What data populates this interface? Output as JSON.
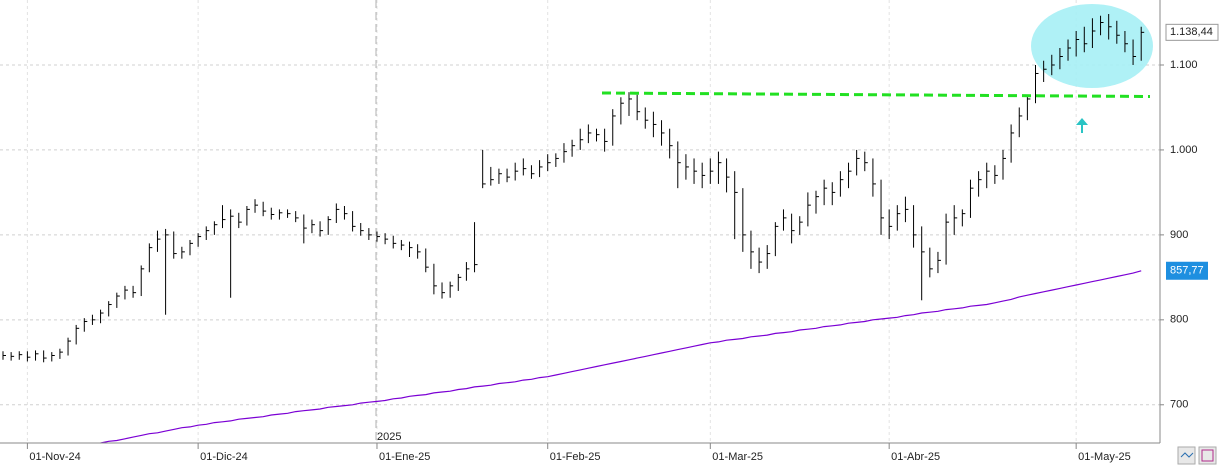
{
  "chart_data": {
    "type": "ohlc",
    "categories": [
      null,
      null,
      null,
      "01-Nov-24",
      null,
      null,
      null,
      null,
      null,
      null,
      null,
      null,
      null,
      null,
      null,
      null,
      null,
      null,
      null,
      null,
      null,
      null,
      null,
      null,
      "01-Dic-24",
      null,
      null,
      null,
      null,
      null,
      null,
      null,
      null,
      null,
      null,
      null,
      null,
      null,
      null,
      null,
      null,
      null,
      null,
      null,
      null,
      null,
      "01-Ene-25",
      null,
      null,
      null,
      null,
      null,
      null,
      null,
      null,
      null,
      null,
      null,
      null,
      null,
      null,
      null,
      null,
      null,
      null,
      null,
      null,
      "01-Feb-25",
      null,
      null,
      null,
      null,
      null,
      null,
      null,
      null,
      null,
      null,
      null,
      null,
      null,
      null,
      null,
      null,
      null,
      null,
      null,
      "01-Mar-25",
      null,
      null,
      null,
      null,
      null,
      null,
      null,
      null,
      null,
      null,
      null,
      null,
      null,
      null,
      null,
      null,
      null,
      null,
      null,
      null,
      null,
      "01-Abr-25",
      null,
      null,
      null,
      null,
      null,
      null,
      null,
      null,
      null,
      null,
      null,
      null,
      null,
      null,
      null,
      null,
      null,
      null,
      null,
      null,
      null,
      null,
      "01-May-25",
      null,
      null,
      null,
      null,
      null,
      null,
      null,
      null
    ],
    "high": [
      763,
      762,
      763,
      763,
      764,
      764,
      762,
      766,
      779,
      794,
      802,
      806,
      812,
      822,
      832,
      840,
      840,
      864,
      890,
      905,
      907,
      904,
      886,
      894,
      902,
      910,
      916,
      935,
      930,
      926,
      934,
      942,
      939,
      932,
      930,
      930,
      928,
      924,
      918,
      916,
      922,
      937,
      934,
      928,
      914,
      908,
      904,
      902,
      899,
      894,
      892,
      889,
      884,
      866,
      844,
      845,
      854,
      868,
      915,
      1000,
      980,
      978,
      978,
      985,
      990,
      982,
      988,
      995,
      996,
      1008,
      1012,
      1025,
      1030,
      1025,
      1025,
      1048,
      1062,
      1068,
      1065,
      1050,
      1045,
      1035,
      1025,
      1010,
      995,
      990,
      985,
      990,
      998,
      990,
      975,
      955,
      905,
      885,
      888,
      915,
      930,
      925,
      922,
      950,
      952,
      965,
      962,
      975,
      985,
      1000,
      998,
      990,
      965,
      930,
      935,
      945,
      935,
      910,
      885,
      880,
      925,
      935,
      930,
      965,
      975,
      985,
      982,
      1000,
      1030,
      1050,
      1065,
      1100,
      1105,
      1112,
      1120,
      1130,
      1140,
      1145,
      1155,
      1158,
      1160,
      1152,
      1140,
      1130,
      1145
    ],
    "low": [
      753,
      752,
      753,
      751,
      752,
      750,
      751,
      754,
      758,
      771,
      786,
      794,
      796,
      804,
      814,
      824,
      826,
      828,
      856,
      880,
      806,
      872,
      872,
      876,
      886,
      894,
      900,
      908,
      826,
      908,
      911,
      926,
      922,
      918,
      918,
      920,
      915,
      890,
      902,
      898,
      900,
      914,
      918,
      904,
      899,
      894,
      892,
      889,
      884,
      882,
      874,
      872,
      856,
      830,
      825,
      826,
      834,
      846,
      856,
      955,
      958,
      960,
      962,
      964,
      970,
      966,
      968,
      975,
      980,
      985,
      992,
      1000,
      1008,
      1010,
      998,
      1005,
      1030,
      1040,
      1035,
      1025,
      1015,
      1005,
      990,
      955,
      965,
      960,
      955,
      960,
      960,
      950,
      895,
      880,
      860,
      855,
      860,
      875,
      905,
      890,
      900,
      910,
      925,
      935,
      935,
      945,
      955,
      970,
      975,
      945,
      900,
      895,
      905,
      915,
      885,
      823,
      850,
      855,
      865,
      900,
      910,
      920,
      945,
      955,
      960,
      965,
      985,
      1015,
      1035,
      1055,
      1080,
      1088,
      1095,
      1105,
      1110,
      1115,
      1120,
      1135,
      1130,
      1125,
      1115,
      1100,
      1105
    ],
    "close": [
      758,
      757,
      759,
      756,
      760,
      755,
      758,
      762,
      775,
      790,
      798,
      800,
      808,
      818,
      828,
      835,
      832,
      860,
      885,
      895,
      900,
      878,
      880,
      890,
      898,
      905,
      912,
      918,
      922,
      915,
      930,
      935,
      928,
      924,
      926,
      925,
      920,
      908,
      912,
      905,
      918,
      930,
      925,
      910,
      905,
      900,
      898,
      895,
      890,
      888,
      885,
      880,
      862,
      840,
      832,
      840,
      850,
      860,
      865,
      960,
      965,
      972,
      968,
      975,
      978,
      972,
      980,
      985,
      990,
      998,
      1005,
      1012,
      1020,
      1018,
      1010,
      1040,
      1055,
      1060,
      1045,
      1035,
      1030,
      1020,
      1005,
      985,
      980,
      975,
      970,
      975,
      985,
      968,
      950,
      900,
      880,
      868,
      878,
      910,
      920,
      905,
      915,
      935,
      945,
      955,
      950,
      965,
      975,
      990,
      985,
      960,
      920,
      910,
      925,
      930,
      900,
      880,
      860,
      870,
      915,
      920,
      925,
      955,
      965,
      975,
      970,
      990,
      1020,
      1040,
      1060,
      1090,
      1095,
      1100,
      1110,
      1120,
      1130,
      1125,
      1140,
      1150,
      1145,
      1135,
      1125,
      1110,
      1138.44
    ],
    "color": "#000000",
    "ma_values": [
      null,
      null,
      null,
      null,
      null,
      null,
      null,
      null,
      null,
      null,
      null,
      null,
      655,
      657,
      658,
      660,
      662,
      664,
      666,
      667,
      669,
      671,
      673,
      674,
      676,
      677,
      679,
      680,
      681,
      683,
      684,
      685,
      686,
      688,
      689,
      690,
      692,
      693,
      694,
      695,
      697,
      698,
      699,
      700,
      702,
      703,
      704,
      705,
      707,
      708,
      710,
      711,
      712,
      714,
      715,
      716,
      718,
      719,
      721,
      722,
      723,
      725,
      726,
      727,
      729,
      730,
      732,
      733,
      735,
      737,
      739,
      741,
      743,
      745,
      747,
      749,
      751,
      753,
      755,
      757,
      759,
      761,
      763,
      765,
      767,
      769,
      771,
      773,
      774,
      776,
      777,
      778,
      780,
      781,
      782,
      784,
      785,
      786,
      788,
      789,
      790,
      792,
      793,
      794,
      796,
      797,
      798,
      800,
      801,
      802,
      803,
      805,
      806,
      808,
      809,
      810,
      812,
      813,
      814,
      816,
      817,
      818,
      820,
      822,
      824,
      827,
      829,
      831,
      833,
      835,
      837,
      839,
      841,
      843,
      845,
      847,
      849,
      851,
      853,
      855,
      857.77
    ],
    "ma_color": "#7b00d4",
    "last_price_label": "1.138,44",
    "ma_label": "857,77",
    "ma_label_color": "#1e8fe0",
    "year_label": "2025",
    "ylim": [
      655,
      1176.5
    ],
    "yticks": [
      {
        "value": 1100,
        "label": "1.100"
      },
      {
        "value": 1000,
        "label": "1.000"
      },
      900,
      800,
      700
    ],
    "grid": true
  }
}
